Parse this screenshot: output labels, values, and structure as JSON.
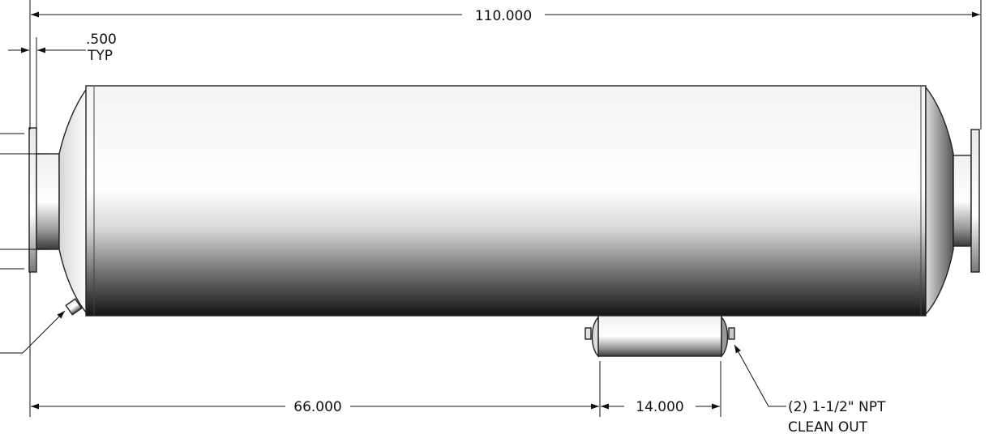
{
  "dimensions": {
    "overall_length": "110.000",
    "flange_thickness_value": ".500",
    "flange_thickness_note": "TYP",
    "inlet_to_saddle": "66.000",
    "saddle_length": "14.000"
  },
  "callouts": {
    "clean_out_line1": "(2) 1-1/2\" NPT",
    "clean_out_line2": "CLEAN OUT"
  },
  "colors": {
    "line": "#111111",
    "shell_light": "#ffffff",
    "shell_dark": "#1a1a1a"
  }
}
